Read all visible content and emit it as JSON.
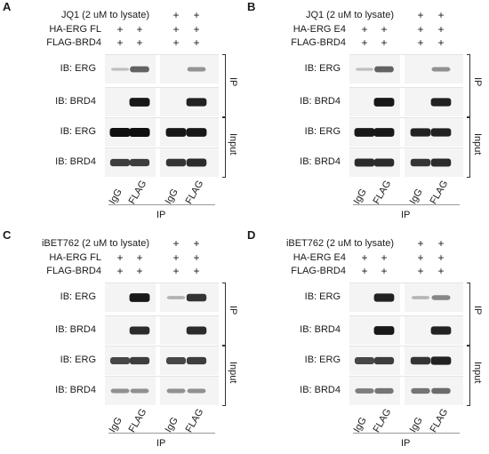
{
  "panels": [
    {
      "letter": "A",
      "treatment": "JQ1 (2 uM to lysate)",
      "construct": "HA-ERG FL",
      "bait": "FLAG-BRD4",
      "signs": {
        "treatment": [
          "",
          "",
          "+",
          "+"
        ],
        "construct": [
          "+",
          "+",
          "+",
          "+"
        ],
        "bait": [
          "+",
          "+",
          "+",
          "+"
        ]
      },
      "blots": [
        {
          "label": "IB: ERG",
          "bands": [
            0.05,
            0.55,
            0.0,
            0.28
          ]
        },
        {
          "label": "IB: BRD4",
          "bands": [
            0.0,
            0.95,
            0.0,
            0.9
          ]
        },
        {
          "label": "IB: ERG",
          "bands": [
            1.0,
            1.0,
            0.95,
            0.95
          ]
        },
        {
          "label": "IB: BRD4",
          "bands": [
            0.75,
            0.75,
            0.8,
            0.85
          ]
        }
      ],
      "ip_group": "IP",
      "input_group": "Input",
      "lanes": [
        "IgG",
        "FLAG",
        "IgG",
        "FLAG"
      ],
      "footer": "IP"
    },
    {
      "letter": "B",
      "treatment": "JQ1 (2 uM to lysate)",
      "construct": "HA-ERG E4",
      "bait": "FLAG-BRD4",
      "signs": {
        "treatment": [
          "",
          "",
          "+",
          "+"
        ],
        "construct": [
          "+",
          "+",
          "+",
          "+"
        ],
        "bait": [
          "+",
          "+",
          "+",
          "+"
        ]
      },
      "blots": [
        {
          "label": "IB: ERG",
          "bands": [
            0.05,
            0.55,
            0.0,
            0.3
          ]
        },
        {
          "label": "IB: BRD4",
          "bands": [
            0.0,
            0.95,
            0.0,
            0.9
          ]
        },
        {
          "label": "IB: ERG",
          "bands": [
            0.95,
            0.95,
            0.9,
            0.9
          ]
        },
        {
          "label": "IB: BRD4",
          "bands": [
            0.85,
            0.85,
            0.8,
            0.85
          ]
        }
      ],
      "ip_group": "IP",
      "input_group": "Input",
      "lanes": [
        "IgG",
        "FLAG",
        "IgG",
        "FLAG"
      ],
      "footer": "IP"
    },
    {
      "letter": "C",
      "treatment": "iBET762 (2 uM to lysate)",
      "construct": "HA-ERG FL",
      "bait": "FLAG-BRD4",
      "signs": {
        "treatment": [
          "",
          "",
          "+",
          "+"
        ],
        "construct": [
          "+",
          "+",
          "+",
          "+"
        ],
        "bait": [
          "+",
          "+",
          "+",
          "+"
        ]
      },
      "blots": [
        {
          "label": "IB: ERG",
          "bands": [
            0.0,
            0.95,
            0.12,
            0.8
          ]
        },
        {
          "label": "IB: BRD4",
          "bands": [
            0.0,
            0.85,
            0.0,
            0.85
          ]
        },
        {
          "label": "IB: ERG",
          "bands": [
            0.7,
            0.75,
            0.7,
            0.75
          ]
        },
        {
          "label": "IB: BRD4",
          "bands": [
            0.3,
            0.3,
            0.3,
            0.3
          ]
        }
      ],
      "ip_group": "IP",
      "input_group": "Input",
      "lanes": [
        "IgG",
        "FLAG",
        "IgG",
        "FLAG"
      ],
      "footer": "IP"
    },
    {
      "letter": "D",
      "treatment": "iBET762 (2 uM to lysate)",
      "construct": "HA-ERG E4",
      "bait": "FLAG-BRD4",
      "signs": {
        "treatment": [
          "",
          "",
          "+",
          "+"
        ],
        "construct": [
          "+",
          "+",
          "+",
          "+"
        ],
        "bait": [
          "+",
          "+",
          "+",
          "+"
        ]
      },
      "blots": [
        {
          "label": "IB: ERG",
          "bands": [
            0.0,
            0.9,
            0.1,
            0.35
          ]
        },
        {
          "label": "IB: BRD4",
          "bands": [
            0.0,
            0.95,
            0.0,
            0.9
          ]
        },
        {
          "label": "IB: ERG",
          "bands": [
            0.7,
            0.75,
            0.8,
            0.9
          ]
        },
        {
          "label": "IB: BRD4",
          "bands": [
            0.4,
            0.45,
            0.45,
            0.5
          ]
        }
      ],
      "ip_group": "IP",
      "input_group": "Input",
      "lanes": [
        "IgG",
        "FLAG",
        "IgG",
        "FLAG"
      ],
      "footer": "IP"
    }
  ]
}
